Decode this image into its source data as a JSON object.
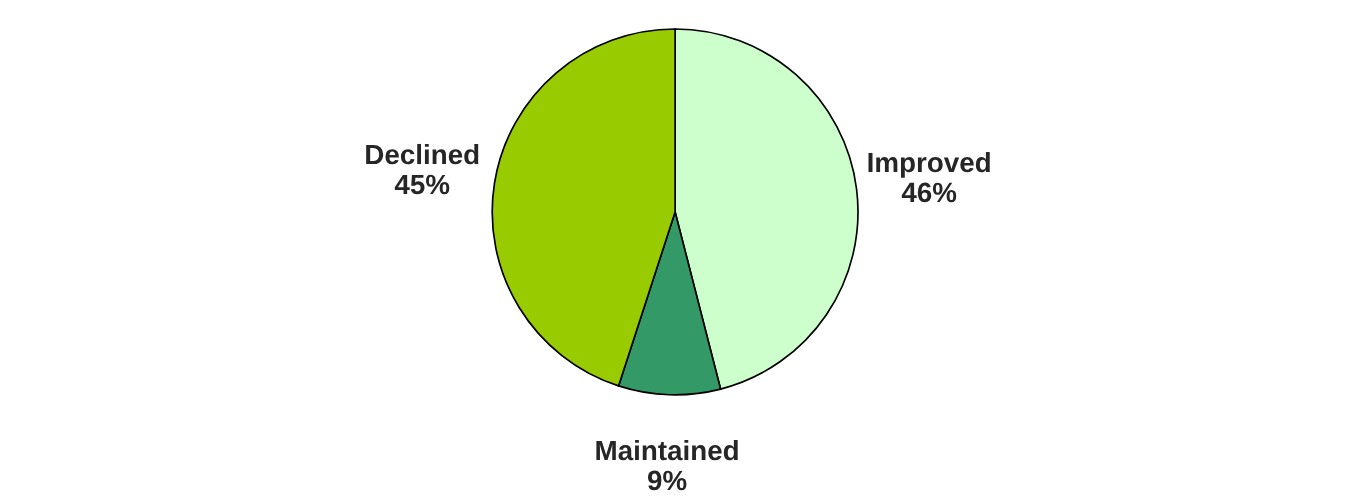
{
  "chart_data": {
    "type": "pie",
    "categories": [
      "Improved",
      "Maintained",
      "Declined"
    ],
    "values": [
      46,
      9,
      45
    ],
    "colors": [
      "#ccffcc",
      "#339966",
      "#99cc00"
    ],
    "value_labels": [
      "46%",
      "9%",
      "45%"
    ]
  }
}
